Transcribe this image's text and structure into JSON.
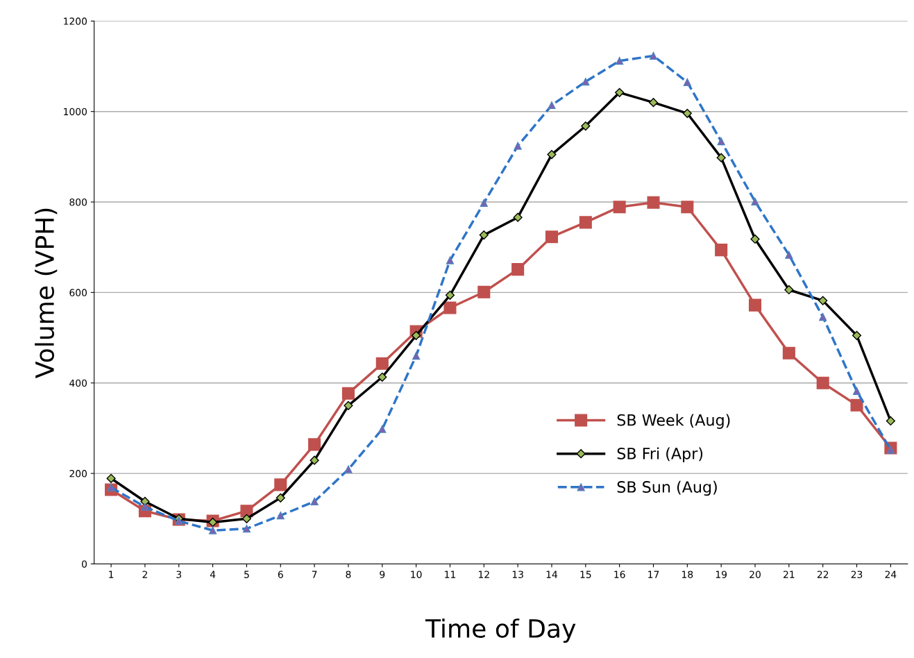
{
  "chart_data": {
    "type": "line",
    "xlabel": "Time of Day",
    "ylabel": "Volume (VPH)",
    "categories": [
      "1",
      "2",
      "3",
      "4",
      "5",
      "6",
      "7",
      "8",
      "9",
      "10",
      "11",
      "12",
      "13",
      "14",
      "15",
      "16",
      "17",
      "18",
      "19",
      "20",
      "21",
      "22",
      "23",
      "24"
    ],
    "series": [
      {
        "name": "SB Week (Aug)",
        "color": "#c0504d",
        "marker": "square",
        "line_style": "solid",
        "values": [
          164,
          117,
          98,
          95,
          117,
          175,
          264,
          377,
          443,
          514,
          566,
          601,
          651,
          723,
          755,
          789,
          799,
          789,
          694,
          572,
          466,
          400,
          351,
          256
        ]
      },
      {
        "name": "SB Fri (Apr)",
        "color": "#000000",
        "marker": "diamond",
        "line_style": "solid",
        "values": [
          189,
          138,
          100,
          92,
          100,
          146,
          229,
          350,
          413,
          505,
          594,
          727,
          766,
          905,
          968,
          1042,
          1020,
          996,
          898,
          718,
          606,
          582,
          505,
          316
        ]
      },
      {
        "name": "SB Sun (Aug)",
        "color": "#2e75c8",
        "marker": "triangle",
        "line_style": "dashed",
        "values": [
          169,
          126,
          95,
          74,
          78,
          107,
          138,
          209,
          298,
          460,
          671,
          798,
          924,
          1014,
          1066,
          1112,
          1123,
          1065,
          934,
          801,
          683,
          546,
          382,
          252
        ]
      }
    ],
    "ylim": [
      0,
      1200
    ],
    "yticks": [
      0,
      200,
      400,
      600,
      800,
      1000,
      1200
    ],
    "grid": "y",
    "legend": "bottom right"
  }
}
